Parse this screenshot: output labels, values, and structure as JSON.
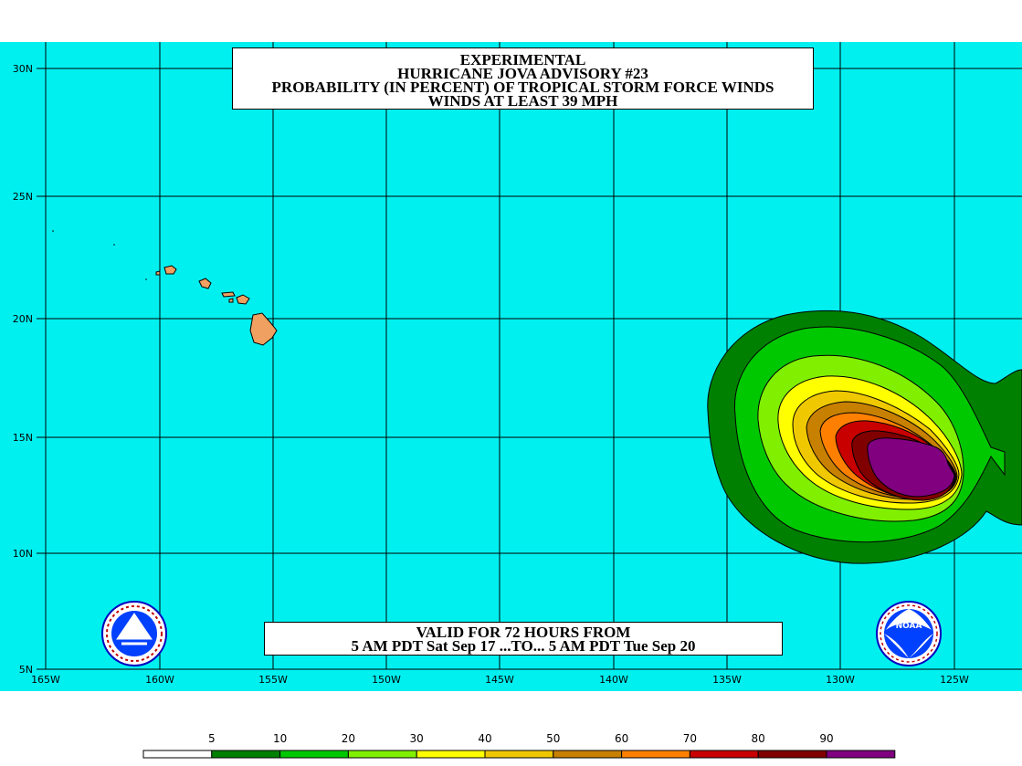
{
  "title": {
    "line1": "EXPERIMENTAL",
    "line2": "HURRICANE JOVA ADVISORY #23",
    "line3": "PROBABILITY (IN PERCENT) OF TROPICAL STORM FORCE WINDS",
    "line4": "WINDS AT LEAST 39 MPH"
  },
  "valid": {
    "line1": "VALID FOR 72 HOURS FROM",
    "line2": "5 AM PDT Sat Sep 17 ...TO... 5 AM PDT Tue Sep 20"
  },
  "axes": {
    "lon_labels": [
      "165W",
      "160W",
      "155W",
      "150W",
      "145W",
      "140W",
      "135W",
      "130W",
      "125W"
    ],
    "lat_labels": [
      "30N",
      "25N",
      "20N",
      "15N",
      "10N",
      "5N"
    ]
  },
  "legend": {
    "labels": [
      "5",
      "10",
      "20",
      "30",
      "40",
      "50",
      "60",
      "70",
      "80",
      "90"
    ],
    "colors": [
      "#ffffff",
      "#008000",
      "#00c800",
      "#80f000",
      "#ffff00",
      "#f0c800",
      "#c88000",
      "#ff8000",
      "#c80000",
      "#800000",
      "#800080"
    ]
  },
  "colors": {
    "ocean": "#00f0f0",
    "land": "#f0a060",
    "grid": "#000000"
  },
  "logos": {
    "left": "nws-logo",
    "right_text": "NOAA"
  }
}
